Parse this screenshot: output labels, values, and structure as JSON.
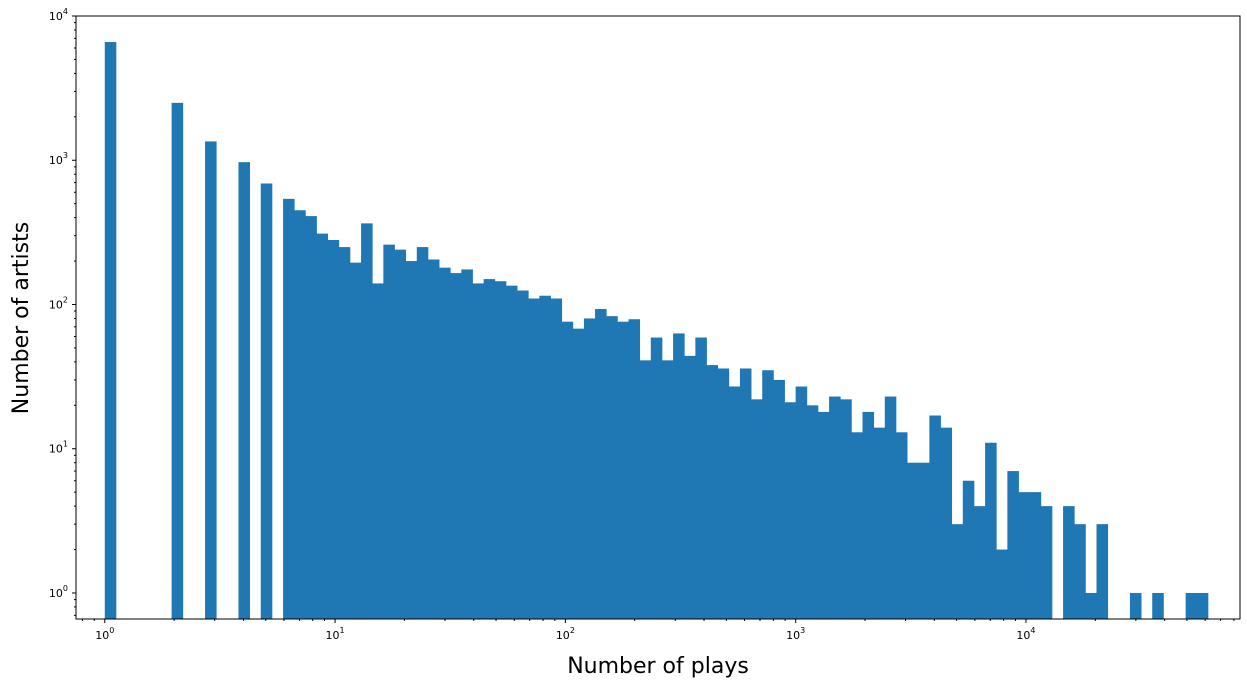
{
  "chart_data": {
    "type": "bar",
    "title": "",
    "xlabel": "Number of plays",
    "ylabel": "Number of artists",
    "xscale": "log",
    "yscale": "log",
    "xlim": [
      0.75,
      85000
    ],
    "ylim": [
      0.66,
      10000
    ],
    "grid": false,
    "legend": "none",
    "bar_color": "#1f77b4",
    "xticks": [
      {
        "value": 1,
        "base": "10",
        "exp": "0"
      },
      {
        "value": 10,
        "base": "10",
        "exp": "1"
      },
      {
        "value": 100,
        "base": "10",
        "exp": "2"
      },
      {
        "value": 1000,
        "base": "10",
        "exp": "3"
      },
      {
        "value": 10000,
        "base": "10",
        "exp": "4"
      }
    ],
    "yticks": [
      {
        "value": 1,
        "base": "10",
        "exp": "0"
      },
      {
        "value": 10,
        "base": "10",
        "exp": "1"
      },
      {
        "value": 100,
        "base": "10",
        "exp": "2"
      },
      {
        "value": 1000,
        "base": "10",
        "exp": "3"
      },
      {
        "value": 10000,
        "base": "10",
        "exp": "4"
      }
    ],
    "bin_edges": [
      1,
      1.118,
      1.249,
      1.397,
      1.561,
      1.745,
      1.951,
      2.181,
      2.438,
      2.725,
      3.046,
      3.405,
      3.807,
      4.255,
      4.757,
      5.318,
      5.945,
      6.645,
      7.429,
      8.304,
      9.283,
      10.377,
      11.6,
      12.968,
      14.496,
      16.205,
      18.114,
      20.249,
      22.636,
      25.304,
      28.286,
      31.62,
      35.347,
      39.512,
      44.169,
      49.375,
      55.194,
      61.699,
      68.971,
      77.099,
      86.186,
      96.344,
      107.7,
      120.39,
      134.58,
      150.44,
      168.17,
      187.99,
      210.15,
      234.92,
      262.6,
      293.55,
      328.15,
      366.83,
      410.06,
      458.39,
      512.41,
      572.8,
      640.31,
      715.77,
      800.13,
      894.43,
      999.85,
      1117.7,
      1249.4,
      1396.7,
      1561.3,
      1745.3,
      1951,
      2180.9,
      2438,
      2725.3,
      3046.5,
      3405.5,
      3806.9,
      4255.6,
      4757.1,
      5317.8,
      5944.5,
      6645.1,
      7428.2,
      8303.7,
      9282.3,
      10376.3,
      11599.2,
      12966.2,
      14494.3,
      16202.6,
      18112.1,
      20246.7,
      22632.9,
      25300.3,
      28282.1,
      31615.3,
      35341.3,
      39506.4,
      44162.4,
      49367.1,
      55185.3,
      61689
    ],
    "values": [
      6600,
      0,
      0,
      0,
      0,
      0,
      2500,
      0,
      0,
      1350,
      0,
      0,
      970,
      0,
      690,
      0,
      540,
      450,
      410,
      310,
      280,
      250,
      195,
      365,
      140,
      260,
      240,
      200,
      250,
      205,
      180,
      165,
      175,
      140,
      150,
      145,
      135,
      125,
      110,
      115,
      110,
      76,
      68,
      80,
      93,
      83,
      76,
      79,
      41,
      59,
      41,
      63,
      44,
      59,
      38,
      36,
      27,
      36,
      22,
      35,
      30,
      21,
      27,
      20,
      18,
      23,
      22,
      13,
      18,
      14,
      23,
      13,
      8,
      8,
      17,
      14,
      3,
      6,
      4,
      11,
      2,
      7,
      5,
      5,
      4,
      0,
      4,
      3,
      1,
      3,
      0,
      0,
      1,
      0,
      1,
      0,
      0,
      1,
      1
    ]
  }
}
